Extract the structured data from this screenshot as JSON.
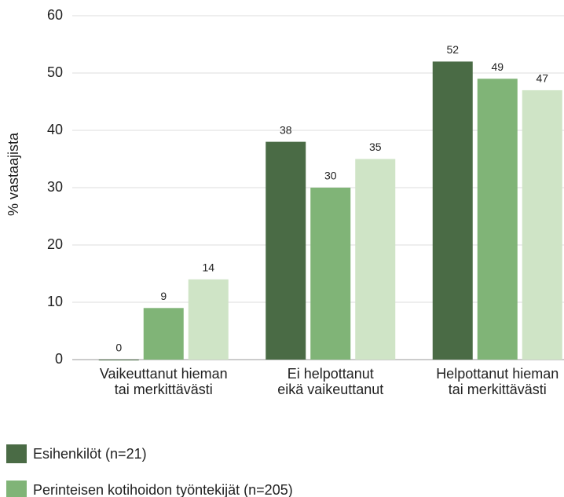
{
  "chart_data": {
    "type": "bar",
    "y_label": "% vastaajista",
    "categories": [
      [
        "Vaikeuttanut hieman",
        "tai merkittävästi"
      ],
      [
        "Ei helpottanut",
        "eikä vaikeuttanut"
      ],
      [
        "Helpottanut hieman",
        "tai merkittävästi"
      ]
    ],
    "series": [
      {
        "name": "Esihenkilöt (n=21)",
        "color": "#4a6b45",
        "values": [
          0,
          38,
          52
        ]
      },
      {
        "name": "Perinteisen kotihoidon työntekijät (n=205)",
        "color": "#80b477",
        "values": [
          9,
          30,
          49
        ]
      },
      {
        "color": "#cfe4c6",
        "values": [
          14,
          35,
          47
        ]
      }
    ],
    "ylim": [
      0,
      60
    ],
    "yticks": [
      0,
      10,
      20,
      30,
      40,
      50,
      60
    ],
    "grid": true
  }
}
